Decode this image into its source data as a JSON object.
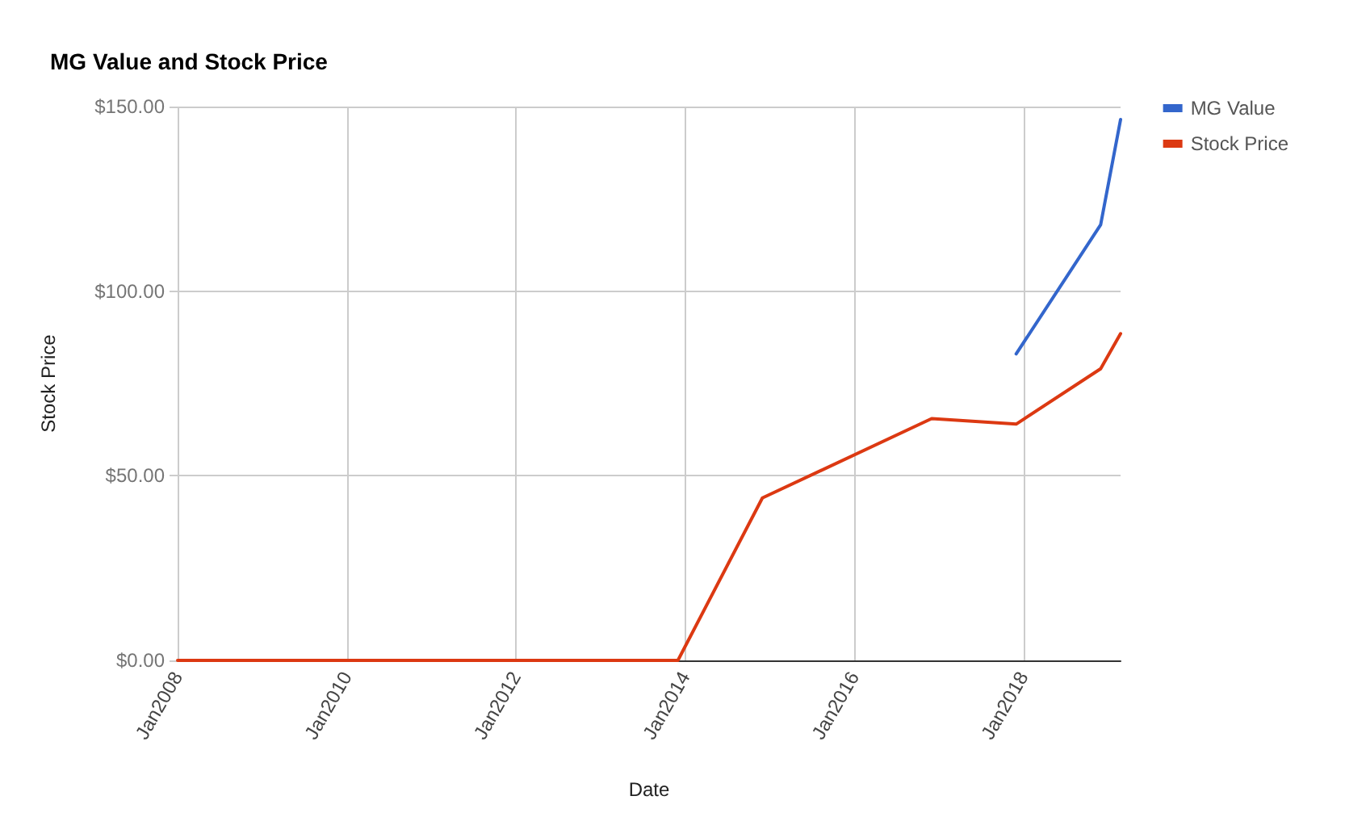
{
  "chart_data": {
    "type": "line",
    "title": "MG Value and Stock Price",
    "xlabel": "Date",
    "ylabel": "Stock Price",
    "xlim": [
      "2008-01-01",
      "2019-02-25"
    ],
    "xticks": [
      {
        "value": "2008-01",
        "label": "Jan2008"
      },
      {
        "value": "2010-01",
        "label": "Jan2010"
      },
      {
        "value": "2012-01",
        "label": "Jan2012"
      },
      {
        "value": "2014-01",
        "label": "Jan2014"
      },
      {
        "value": "2016-01",
        "label": "Jan2016"
      },
      {
        "value": "2018-01",
        "label": "Jan2018"
      }
    ],
    "ylim": [
      0,
      150
    ],
    "yticks": [
      {
        "value": 0,
        "label": "$0.00"
      },
      {
        "value": 50,
        "label": "$50.00"
      },
      {
        "value": 100,
        "label": "$100.00"
      },
      {
        "value": 150,
        "label": "$150.00"
      }
    ],
    "series": [
      {
        "name": "MG Value",
        "color": "#3366cc",
        "x": [
          "2017-12-01",
          "2018-12-01",
          "2019-02-25"
        ],
        "values": [
          83,
          118,
          146.5
        ]
      },
      {
        "name": "Stock Price",
        "color": "#dc3912",
        "x": [
          "2008-01-01",
          "2013-12-01",
          "2014-12-01",
          "2016-12-01",
          "2017-12-01",
          "2018-12-01",
          "2019-02-25"
        ],
        "values": [
          0,
          0,
          44,
          65.5,
          64,
          79,
          88.5
        ]
      }
    ],
    "grid": true,
    "legend": "top right",
    "marker": "none",
    "line_style": "solid"
  }
}
